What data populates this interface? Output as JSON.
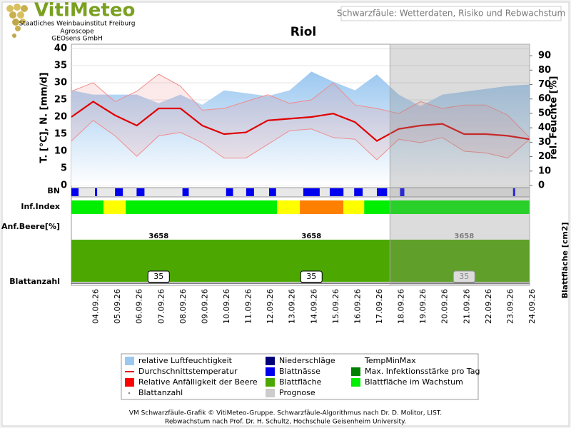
{
  "header": {
    "brand": "VitiMeteo",
    "lines": [
      "Staatliches Weinbauinstitut Freiburg",
      "Agroscope",
      "GEOsens GmbH"
    ],
    "subject": "Schwarzfäule: Wetterdaten, Risiko und Rebwachstum"
  },
  "chart_data": {
    "type": "line",
    "title": "Riol",
    "ylabel": "T. [°C], N. [mm/d]",
    "y2label": "rel. Feuchte [%]",
    "categories": [
      null,
      "04.09.26",
      "05.09.26",
      "06.09.26",
      "07.09.26",
      "08.09.26",
      "09.09.26",
      "10.09.26",
      "11.09.26",
      "12.09.26",
      "13.09.26",
      "14.09.26",
      "15.09.26",
      "16.09.26",
      "17.09.26",
      "18.09.26",
      "19.09.26",
      "20.09.26",
      "21.09.26",
      "22.09.26",
      "23.09.26",
      "24.09.26"
    ],
    "ylim": [
      0,
      40
    ],
    "yticks": [
      0,
      5,
      10,
      15,
      20,
      25,
      30,
      35,
      40
    ],
    "y2lim": [
      0,
      95
    ],
    "y2ticks": [
      0,
      10,
      20,
      30,
      40,
      50,
      60,
      70,
      80,
      90
    ],
    "grid": true,
    "series": [
      {
        "name": "relative Luftfeuchtigkeit",
        "color": "#9cc8f0",
        "axis": "y2",
        "values": [
          66,
          63,
          63,
          63,
          57,
          63,
          56,
          66,
          64,
          62,
          66,
          79,
          72,
          66,
          77,
          63,
          55,
          63,
          65,
          67,
          69,
          70
        ]
      },
      {
        "name": "TempMax",
        "color": "#f08c8c",
        "values": [
          27.5,
          30,
          24.5,
          27.5,
          32.5,
          29,
          22,
          22.5,
          24.5,
          26.5,
          24,
          25,
          30,
          23.5,
          22.5,
          21,
          24.5,
          22.5,
          23.5,
          23.5,
          20.5,
          14
        ]
      },
      {
        "name": "TempMin",
        "color": "#f08c8c",
        "values": [
          13,
          19,
          14.5,
          8.5,
          14.5,
          15.5,
          12.5,
          8,
          8,
          12,
          16,
          16.5,
          14,
          13.5,
          7.5,
          13.5,
          12.5,
          14,
          10,
          9.5,
          8,
          13.5
        ]
      },
      {
        "name": "Durchschnittstemperatur",
        "color": "#e00000",
        "values": [
          20,
          24.5,
          20.5,
          17.5,
          22.5,
          22.5,
          17.5,
          15,
          15.5,
          19,
          19.5,
          20,
          21,
          18.5,
          13,
          16.5,
          17.5,
          18,
          15,
          15,
          14.5,
          13.5
        ]
      }
    ],
    "forecast_from": 14.6,
    "row_labels": [
      "BN",
      "Inf.Index",
      "Anf.Beere[%]",
      "Blattanzahl"
    ],
    "leaf_area_label": "Blattfläche [cm2]",
    "leaf_wetness_color": "#0000ee",
    "leaf_wetness": [
      [
        0,
        0.33
      ],
      [
        1.08,
        1.18
      ],
      [
        2.0,
        2.36
      ],
      [
        2.99,
        3.35
      ],
      [
        5.09,
        5.38
      ],
      [
        7.09,
        7.41
      ],
      [
        8.01,
        8.37
      ],
      [
        9.06,
        9.38
      ],
      [
        10.63,
        11.38
      ],
      [
        11.84,
        12.47
      ],
      [
        12.96,
        13.35
      ],
      [
        14.0,
        14.47
      ],
      [
        15.06,
        15.26
      ],
      [
        20.24,
        20.34
      ]
    ],
    "inf_index": [
      {
        "from": 0,
        "to": 1.48,
        "color": "#00ee00"
      },
      {
        "from": 1.48,
        "to": 2.49,
        "color": "#ffff00"
      },
      {
        "from": 2.49,
        "to": 9.42,
        "color": "#00ee00"
      },
      {
        "from": 9.42,
        "to": 10.47,
        "color": "#ffff00"
      },
      {
        "from": 10.47,
        "to": 12.47,
        "color": "#ff8000"
      },
      {
        "from": 12.47,
        "to": 13.42,
        "color": "#ffff00"
      },
      {
        "from": 13.42,
        "to": 21,
        "color": "#00ee00"
      }
    ],
    "leaf_area_color": "#4ca800",
    "leaf_area": {
      "at": [
        4,
        11,
        18
      ],
      "values": [
        3658,
        3658,
        3658
      ]
    },
    "leaf_count": {
      "at": [
        4,
        11,
        18
      ],
      "values": [
        35,
        35,
        35
      ]
    },
    "legend": [
      {
        "label": "relative Luftfeuchtigkeit",
        "kind": "area",
        "color": "#9cc8f0"
      },
      {
        "label": "Durchschnittstemperatur",
        "kind": "line",
        "color": "#e00000"
      },
      {
        "label": "Relative Anfälligkeit der Beere",
        "kind": "square",
        "color": "#ff0000"
      },
      {
        "label": "Blattanzahl",
        "kind": "dot",
        "color": "#555555"
      },
      {
        "label": "Niederschläge",
        "kind": "square",
        "color": "#00007a"
      },
      {
        "label": "Blattnässe",
        "kind": "square",
        "color": "#0000ee"
      },
      {
        "label": "Blattfläche",
        "kind": "square",
        "color": "#4ca800"
      },
      {
        "label": "Prognose",
        "kind": "square",
        "color": "#cccccc"
      },
      {
        "label": "TempMinMax",
        "kind": "none"
      },
      {
        "label": "Max. Infektionsstärke pro Tag",
        "kind": "square",
        "color": "#008000"
      },
      {
        "label": "Blattfläche im Wachstum",
        "kind": "square",
        "color": "#00ee00"
      }
    ]
  },
  "footer": [
    "VM Schwarzfäule-Grafik © VitiMeteo-Gruppe. Schwarzfäule-Algorithmus nach Dr. D. Molitor, LIST.",
    "Rebwachstum nach Prof. Dr. H. Schultz, Hochschule Geisenheim University."
  ]
}
